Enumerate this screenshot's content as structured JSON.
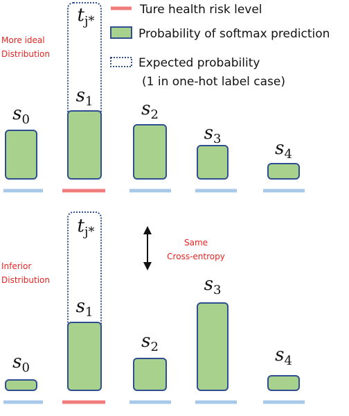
{
  "legend": [
    "Ture health risk level",
    "Probability of softmax prediction",
    "Expected probability",
    "(1 in one-hot label case)"
  ],
  "note": [
    "Same",
    "Cross-entropy"
  ],
  "panels": [
    {
      "label": [
        "More ideal",
        "Distribution"
      ],
      "target": {
        "base": "t",
        "sub": "j*"
      },
      "bars": [
        {
          "base": "s",
          "sub": "0"
        },
        {
          "base": "s",
          "sub": "1"
        },
        {
          "base": "s",
          "sub": "2"
        },
        {
          "base": "s",
          "sub": "3"
        },
        {
          "base": "s",
          "sub": "4"
        }
      ]
    },
    {
      "label": [
        "Inferior",
        "Distribution"
      ],
      "target": {
        "base": "t",
        "sub": "j*"
      },
      "bars": [
        {
          "base": "s",
          "sub": "0"
        },
        {
          "base": "s",
          "sub": "1"
        },
        {
          "base": "s",
          "sub": "2"
        },
        {
          "base": "s",
          "sub": "3"
        },
        {
          "base": "s",
          "sub": "4"
        }
      ]
    }
  ]
}
